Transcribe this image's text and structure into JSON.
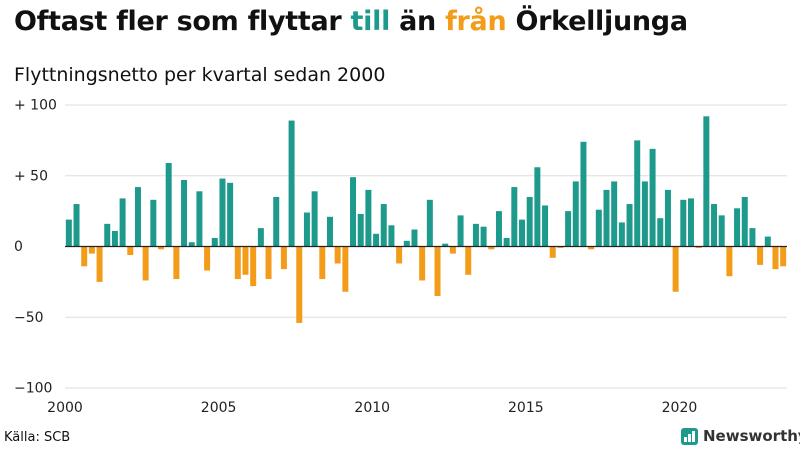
{
  "title": {
    "part1": "Oftast fler som flyttar ",
    "part2": "till",
    "part3": " än ",
    "part4": "från",
    "part5": " Örkelljunga"
  },
  "subtitle": "Flyttningsnetto per kvartal sedan 2000",
  "source": "Källa: SCB",
  "logo_text": "Newsworthy",
  "colors": {
    "positive": "#1d9a8b",
    "negative": "#f39c1a",
    "grid": "#dddddd",
    "zero": "#222222",
    "axis_text": "#222222"
  },
  "chart_data": {
    "type": "bar",
    "x_start": "2000 Q1",
    "xticks": [
      "2000",
      "2005",
      "2010",
      "2015",
      "2020"
    ],
    "yticks": [
      "+ 100",
      "+  50",
      "0",
      "−50",
      "−100"
    ],
    "ytick_values": [
      100,
      50,
      0,
      -50,
      -100
    ],
    "ylim": [
      -100,
      100
    ],
    "grid": true,
    "values": [
      19,
      30,
      -14,
      -5,
      -25,
      16,
      11,
      34,
      -6,
      42,
      -24,
      33,
      -2,
      59,
      -23,
      47,
      3,
      39,
      -17,
      6,
      48,
      45,
      -23,
      -20,
      -28,
      13,
      -23,
      35,
      -16,
      89,
      -54,
      24,
      39,
      -23,
      21,
      -12,
      -32,
      49,
      23,
      40,
      9,
      30,
      15,
      -12,
      4,
      12,
      -24,
      33,
      -35,
      2,
      -5,
      22,
      -20,
      16,
      14,
      -2,
      25,
      6,
      42,
      19,
      35,
      56,
      29,
      -8,
      -1,
      25,
      46,
      74,
      -2,
      26,
      40,
      46,
      17,
      30,
      75,
      46,
      69,
      20,
      40,
      -32,
      33,
      34,
      -1,
      92,
      30,
      22,
      -21,
      27,
      35,
      13,
      -13,
      7,
      -16,
      -14
    ]
  }
}
